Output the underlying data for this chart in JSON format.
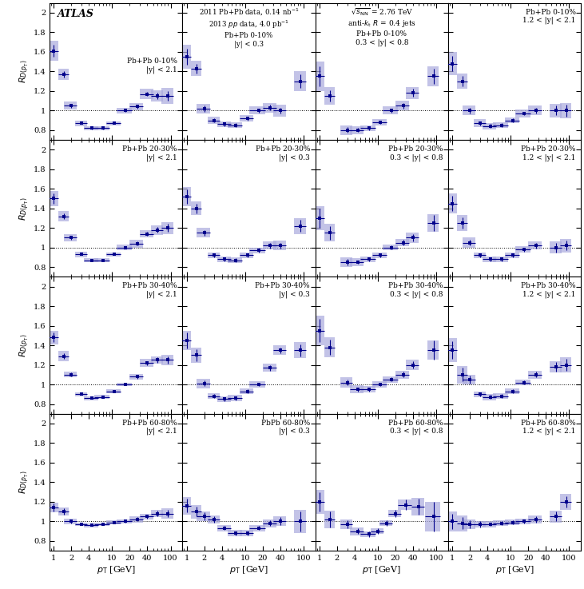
{
  "nrows": 4,
  "ncols": 4,
  "ylim": [
    0.7,
    2.1
  ],
  "xlim": [
    0.85,
    160
  ],
  "point_color": "#00008B",
  "sys_color": "#aaaadd",
  "panel_labels": [
    [
      "Pb+Pb 0-10%\n|y| < 2.1",
      "2011 Pb+Pb data, 0.14 nb$^{-1}$\n2013 $pp$ data, 4.0 pb$^{-1}$\nPb+Pb 0-10%\n|y| < 0.3",
      "$\\sqrt{s_\\mathrm{NN}}$ = 2.76 TeV\nanti-$k_\\mathrm{t}$ $R$ = 0.4 jets\nPb+Pb 0-10%\n0.3 < |y| < 0.8",
      "Pb+Pb 0-10%\n1.2 < |y| < 2.1"
    ],
    [
      "Pb+Pb 20-30%\n|y| < 2.1",
      "Pb+Pb 20-30%\n|y| < 0.3",
      "Pb+Pb 20-30%\n0.3 < |y| < 0.8",
      "Pb+Pb 20-30%\n1.2 < |y| < 2.1"
    ],
    [
      "Pb+Pb 30-40%\n|y| < 2.1",
      "Pb+Pb 30-40%\n|y| < 0.3",
      "Pb+Pb 30-40%\n0.3 < |y| < 0.8",
      "Pb+Pb 30-40%\n1.2 < |y| < 2.1"
    ],
    [
      "Pb+Pb 60-80%\n|y| < 2.1",
      "PbPb 60-80%\n|y| < 0.3",
      "Pb+Pb 60-80%\n0.3 < |y| < 0.8",
      "Pb+Pb 60-80%\n1.2 < |y| < 2.1"
    ]
  ],
  "data": {
    "row0_col0": {
      "x": [
        1.0,
        1.5,
        2.0,
        3.0,
        4.5,
        7.0,
        11.0,
        17.0,
        27.0,
        40.0,
        60.0,
        90.0
      ],
      "y": [
        1.61,
        1.37,
        1.05,
        0.87,
        0.82,
        0.82,
        0.87,
        1.0,
        1.04,
        1.17,
        1.15,
        1.15
      ],
      "xerr": [
        0.2,
        0.3,
        0.5,
        0.7,
        1.2,
        2.0,
        3.0,
        5.0,
        7.0,
        10.0,
        14.0,
        20.0
      ],
      "yerr": [
        0.06,
        0.03,
        0.02,
        0.01,
        0.01,
        0.01,
        0.01,
        0.01,
        0.02,
        0.02,
        0.03,
        0.05
      ],
      "sys": [
        0.1,
        0.06,
        0.04,
        0.03,
        0.02,
        0.02,
        0.02,
        0.03,
        0.04,
        0.05,
        0.06,
        0.08
      ]
    },
    "row0_col1": {
      "x": [
        1.0,
        1.5,
        2.0,
        3.0,
        4.5,
        7.0,
        11.0,
        17.0,
        27.0,
        40.0,
        90.0
      ],
      "y": [
        1.55,
        1.43,
        1.02,
        0.9,
        0.86,
        0.85,
        0.92,
        1.0,
        1.03,
        1.0,
        1.3
      ],
      "xerr": [
        0.2,
        0.3,
        0.5,
        0.7,
        1.2,
        2.0,
        3.0,
        5.0,
        7.0,
        10.0,
        20.0
      ],
      "yerr": [
        0.08,
        0.05,
        0.03,
        0.02,
        0.02,
        0.02,
        0.02,
        0.02,
        0.03,
        0.03,
        0.07
      ],
      "sys": [
        0.12,
        0.08,
        0.05,
        0.04,
        0.03,
        0.03,
        0.03,
        0.04,
        0.05,
        0.06,
        0.1
      ]
    },
    "row0_col2": {
      "x": [
        1.0,
        1.5,
        3.0,
        4.5,
        7.0,
        11.0,
        17.0,
        27.0,
        40.0,
        90.0
      ],
      "y": [
        1.35,
        1.15,
        0.8,
        0.8,
        0.82,
        0.88,
        1.0,
        1.05,
        1.18,
        1.35
      ],
      "xerr": [
        0.2,
        0.3,
        0.7,
        1.2,
        2.0,
        3.0,
        5.0,
        7.0,
        10.0,
        20.0
      ],
      "yerr": [
        0.1,
        0.06,
        0.03,
        0.02,
        0.02,
        0.02,
        0.02,
        0.03,
        0.04,
        0.08
      ],
      "sys": [
        0.15,
        0.09,
        0.05,
        0.04,
        0.03,
        0.03,
        0.04,
        0.05,
        0.06,
        0.1
      ]
    },
    "row0_col3": {
      "x": [
        1.0,
        1.5,
        2.0,
        3.0,
        4.5,
        7.0,
        11.0,
        17.0,
        27.0,
        60.0,
        90.0
      ],
      "y": [
        1.48,
        1.3,
        1.0,
        0.87,
        0.84,
        0.85,
        0.9,
        0.97,
        1.0,
        1.0,
        1.0
      ],
      "xerr": [
        0.2,
        0.3,
        0.5,
        0.7,
        1.2,
        2.0,
        3.0,
        5.0,
        7.0,
        14.0,
        20.0
      ],
      "yerr": [
        0.08,
        0.05,
        0.03,
        0.02,
        0.02,
        0.02,
        0.02,
        0.02,
        0.03,
        0.05,
        0.06
      ],
      "sys": [
        0.12,
        0.08,
        0.05,
        0.04,
        0.03,
        0.03,
        0.03,
        0.04,
        0.05,
        0.07,
        0.08
      ]
    },
    "row1_col0": {
      "x": [
        1.0,
        1.5,
        2.0,
        3.0,
        4.5,
        7.0,
        11.0,
        17.0,
        27.0,
        40.0,
        60.0,
        90.0
      ],
      "y": [
        1.5,
        1.32,
        1.1,
        0.93,
        0.87,
        0.87,
        0.93,
        1.0,
        1.04,
        1.14,
        1.18,
        1.2
      ],
      "xerr": [
        0.2,
        0.3,
        0.5,
        0.7,
        1.2,
        2.0,
        3.0,
        5.0,
        7.0,
        10.0,
        14.0,
        20.0
      ],
      "yerr": [
        0.05,
        0.03,
        0.02,
        0.01,
        0.01,
        0.01,
        0.01,
        0.01,
        0.02,
        0.02,
        0.03,
        0.04
      ],
      "sys": [
        0.08,
        0.05,
        0.04,
        0.03,
        0.02,
        0.02,
        0.02,
        0.03,
        0.04,
        0.04,
        0.05,
        0.06
      ]
    },
    "row1_col1": {
      "x": [
        1.0,
        1.5,
        2.0,
        3.0,
        4.5,
        7.0,
        11.0,
        17.0,
        27.0,
        40.0,
        90.0
      ],
      "y": [
        1.52,
        1.4,
        1.15,
        0.92,
        0.88,
        0.87,
        0.92,
        0.97,
        1.02,
        1.02,
        1.22
      ],
      "xerr": [
        0.2,
        0.3,
        0.5,
        0.7,
        1.2,
        2.0,
        3.0,
        5.0,
        7.0,
        10.0,
        20.0
      ],
      "yerr": [
        0.07,
        0.05,
        0.03,
        0.02,
        0.02,
        0.02,
        0.02,
        0.02,
        0.03,
        0.03,
        0.06
      ],
      "sys": [
        0.1,
        0.07,
        0.05,
        0.03,
        0.03,
        0.03,
        0.03,
        0.03,
        0.04,
        0.05,
        0.08
      ]
    },
    "row1_col2": {
      "x": [
        1.0,
        1.5,
        3.0,
        4.5,
        7.0,
        11.0,
        17.0,
        27.0,
        40.0,
        90.0
      ],
      "y": [
        1.3,
        1.15,
        0.85,
        0.85,
        0.88,
        0.92,
        1.0,
        1.05,
        1.1,
        1.25
      ],
      "xerr": [
        0.2,
        0.3,
        0.7,
        1.2,
        2.0,
        3.0,
        5.0,
        7.0,
        10.0,
        20.0
      ],
      "yerr": [
        0.1,
        0.07,
        0.03,
        0.02,
        0.02,
        0.02,
        0.02,
        0.03,
        0.04,
        0.08
      ],
      "sys": [
        0.12,
        0.09,
        0.05,
        0.04,
        0.03,
        0.03,
        0.03,
        0.04,
        0.05,
        0.09
      ]
    },
    "row1_col3": {
      "x": [
        1.0,
        1.5,
        2.0,
        3.0,
        4.5,
        7.0,
        11.0,
        17.0,
        27.0,
        60.0,
        90.0
      ],
      "y": [
        1.45,
        1.25,
        1.05,
        0.92,
        0.88,
        0.88,
        0.92,
        0.98,
        1.02,
        1.0,
        1.02
      ],
      "xerr": [
        0.2,
        0.3,
        0.5,
        0.7,
        1.2,
        2.0,
        3.0,
        5.0,
        7.0,
        14.0,
        20.0
      ],
      "yerr": [
        0.08,
        0.06,
        0.03,
        0.02,
        0.02,
        0.02,
        0.02,
        0.02,
        0.03,
        0.05,
        0.05
      ],
      "sys": [
        0.1,
        0.08,
        0.05,
        0.03,
        0.03,
        0.03,
        0.03,
        0.03,
        0.04,
        0.06,
        0.07
      ]
    },
    "row2_col0": {
      "x": [
        1.0,
        1.5,
        2.0,
        3.0,
        4.5,
        7.0,
        11.0,
        17.0,
        27.0,
        40.0,
        60.0,
        90.0
      ],
      "y": [
        1.48,
        1.29,
        1.1,
        0.9,
        0.86,
        0.87,
        0.93,
        1.0,
        1.08,
        1.22,
        1.25,
        1.25
      ],
      "xerr": [
        0.2,
        0.3,
        0.5,
        0.7,
        1.2,
        2.0,
        3.0,
        5.0,
        7.0,
        10.0,
        14.0,
        20.0
      ],
      "yerr": [
        0.05,
        0.03,
        0.02,
        0.01,
        0.01,
        0.01,
        0.01,
        0.01,
        0.02,
        0.02,
        0.03,
        0.04
      ],
      "sys": [
        0.07,
        0.05,
        0.03,
        0.02,
        0.02,
        0.02,
        0.02,
        0.02,
        0.03,
        0.04,
        0.04,
        0.05
      ]
    },
    "row2_col1": {
      "x": [
        1.0,
        1.5,
        2.0,
        3.0,
        4.5,
        7.0,
        11.0,
        17.0,
        27.0,
        40.0,
        90.0
      ],
      "y": [
        1.45,
        1.3,
        1.01,
        0.88,
        0.85,
        0.86,
        0.93,
        1.0,
        1.17,
        1.35,
        1.35
      ],
      "xerr": [
        0.2,
        0.3,
        0.5,
        0.7,
        1.2,
        2.0,
        3.0,
        5.0,
        7.0,
        10.0,
        20.0
      ],
      "yerr": [
        0.08,
        0.06,
        0.03,
        0.02,
        0.02,
        0.02,
        0.02,
        0.02,
        0.03,
        0.03,
        0.06
      ],
      "sys": [
        0.1,
        0.08,
        0.05,
        0.03,
        0.03,
        0.03,
        0.03,
        0.03,
        0.04,
        0.05,
        0.08
      ]
    },
    "row2_col2": {
      "x": [
        1.0,
        1.5,
        3.0,
        4.5,
        7.0,
        11.0,
        17.0,
        27.0,
        40.0,
        90.0
      ],
      "y": [
        1.55,
        1.38,
        1.02,
        0.95,
        0.95,
        1.0,
        1.05,
        1.1,
        1.2,
        1.35
      ],
      "xerr": [
        0.2,
        0.3,
        0.7,
        1.2,
        2.0,
        3.0,
        5.0,
        7.0,
        10.0,
        20.0
      ],
      "yerr": [
        0.12,
        0.08,
        0.03,
        0.02,
        0.02,
        0.02,
        0.02,
        0.03,
        0.04,
        0.1
      ],
      "sys": [
        0.15,
        0.1,
        0.05,
        0.04,
        0.03,
        0.03,
        0.03,
        0.04,
        0.05,
        0.1
      ]
    },
    "row2_col3": {
      "x": [
        1.0,
        1.5,
        2.0,
        3.0,
        4.5,
        7.0,
        11.0,
        17.0,
        27.0,
        60.0,
        90.0
      ],
      "y": [
        1.35,
        1.1,
        1.05,
        0.9,
        0.87,
        0.88,
        0.93,
        1.02,
        1.1,
        1.18,
        1.2
      ],
      "xerr": [
        0.2,
        0.3,
        0.5,
        0.7,
        1.2,
        2.0,
        3.0,
        5.0,
        7.0,
        14.0,
        20.0
      ],
      "yerr": [
        0.09,
        0.07,
        0.04,
        0.02,
        0.02,
        0.02,
        0.02,
        0.02,
        0.03,
        0.05,
        0.06
      ],
      "sys": [
        0.12,
        0.09,
        0.05,
        0.03,
        0.03,
        0.03,
        0.03,
        0.03,
        0.04,
        0.06,
        0.08
      ]
    },
    "row3_col0": {
      "x": [
        1.0,
        1.5,
        2.0,
        3.0,
        4.5,
        7.0,
        11.0,
        17.0,
        27.0,
        40.0,
        60.0,
        90.0
      ],
      "y": [
        1.14,
        1.1,
        1.0,
        0.97,
        0.96,
        0.97,
        0.99,
        1.0,
        1.02,
        1.05,
        1.08,
        1.08
      ],
      "xerr": [
        0.2,
        0.3,
        0.5,
        0.7,
        1.2,
        2.0,
        3.0,
        5.0,
        7.0,
        10.0,
        14.0,
        20.0
      ],
      "yerr": [
        0.04,
        0.03,
        0.02,
        0.01,
        0.01,
        0.01,
        0.01,
        0.01,
        0.02,
        0.02,
        0.03,
        0.04
      ],
      "sys": [
        0.05,
        0.04,
        0.03,
        0.02,
        0.02,
        0.02,
        0.02,
        0.02,
        0.03,
        0.03,
        0.04,
        0.05
      ]
    },
    "row3_col1": {
      "x": [
        1.0,
        1.5,
        2.0,
        3.0,
        4.5,
        7.0,
        11.0,
        17.0,
        27.0,
        40.0,
        90.0
      ],
      "y": [
        1.16,
        1.1,
        1.05,
        1.02,
        0.93,
        0.88,
        0.88,
        0.93,
        0.98,
        1.0,
        1.0
      ],
      "xerr": [
        0.2,
        0.3,
        0.5,
        0.7,
        1.2,
        2.0,
        3.0,
        5.0,
        7.0,
        10.0,
        20.0
      ],
      "yerr": [
        0.07,
        0.05,
        0.04,
        0.03,
        0.02,
        0.02,
        0.02,
        0.02,
        0.03,
        0.04,
        0.1
      ],
      "sys": [
        0.09,
        0.07,
        0.05,
        0.04,
        0.03,
        0.03,
        0.03,
        0.03,
        0.04,
        0.05,
        0.12
      ]
    },
    "row3_col2": {
      "x": [
        1.0,
        1.5,
        3.0,
        4.5,
        7.0,
        10.0,
        14.0,
        20.0,
        30.0,
        50.0,
        90.0
      ],
      "y": [
        1.2,
        1.02,
        0.97,
        0.9,
        0.87,
        0.9,
        0.98,
        1.08,
        1.17,
        1.15,
        1.05
      ],
      "xerr": [
        0.2,
        0.3,
        0.7,
        1.2,
        2.0,
        2.5,
        3.5,
        5.0,
        8.0,
        12.0,
        25.0
      ],
      "yerr": [
        0.1,
        0.08,
        0.04,
        0.03,
        0.03,
        0.03,
        0.03,
        0.04,
        0.05,
        0.08,
        0.15
      ],
      "sys": [
        0.12,
        0.09,
        0.05,
        0.04,
        0.03,
        0.03,
        0.03,
        0.04,
        0.05,
        0.09,
        0.15
      ]
    },
    "row3_col3": {
      "x": [
        1.0,
        1.5,
        2.0,
        3.0,
        4.5,
        7.0,
        11.0,
        17.0,
        27.0,
        60.0,
        90.0
      ],
      "y": [
        1.0,
        0.98,
        0.97,
        0.97,
        0.97,
        0.98,
        0.99,
        1.0,
        1.02,
        1.05,
        1.2
      ],
      "xerr": [
        0.2,
        0.3,
        0.5,
        0.7,
        1.2,
        2.0,
        3.0,
        5.0,
        7.0,
        14.0,
        20.0
      ],
      "yerr": [
        0.08,
        0.06,
        0.04,
        0.03,
        0.02,
        0.02,
        0.02,
        0.02,
        0.03,
        0.05,
        0.06
      ],
      "sys": [
        0.1,
        0.08,
        0.05,
        0.03,
        0.03,
        0.03,
        0.03,
        0.03,
        0.04,
        0.06,
        0.08
      ]
    }
  }
}
